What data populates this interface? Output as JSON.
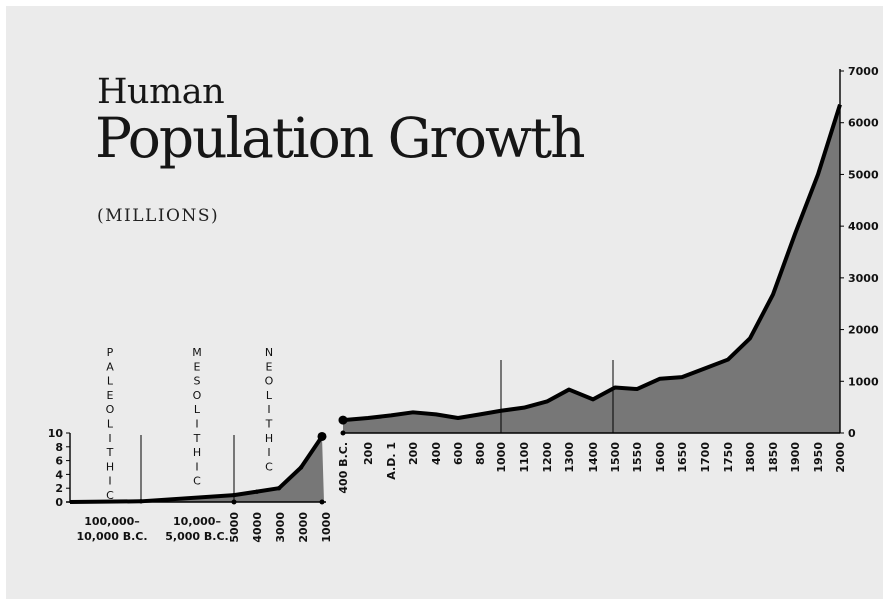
{
  "title": {
    "line1": "Human",
    "line2": "Population Growth",
    "unit": "(MILLIONS)"
  },
  "colors": {
    "background": "#ebebeb",
    "area_fill": "#777777",
    "line": "#000000"
  },
  "chart_data": [
    {
      "type": "area",
      "panel": "prehistoric",
      "title": "",
      "ylim": [
        0,
        10
      ],
      "y_ticks": [
        "0",
        "2",
        "4",
        "6",
        "8",
        "10"
      ],
      "x_tick_labels": [
        "100,000–\n10,000 B.C.",
        "10,000–\n5,000 B.C.",
        "5000",
        "4000",
        "3000",
        "2000",
        "1000"
      ],
      "eras": [
        "PALEOLITHIC",
        "MESOLITHIC",
        "NEOLITHIC"
      ],
      "x": [
        "100,000 B.C.",
        "10,000 B.C.",
        "5000 B.C.",
        "4000 B.C.",
        "3000 B.C.",
        "2000 B.C.",
        "1000 B.C."
      ],
      "values": [
        0,
        0.1,
        1.0,
        1.5,
        2,
        5,
        9.5
      ]
    },
    {
      "type": "area",
      "panel": "historic",
      "title": "",
      "ylim": [
        0,
        7000
      ],
      "y_ticks": [
        "0",
        "1000",
        "2000",
        "3000",
        "4000",
        "5000",
        "6000",
        "7000"
      ],
      "x": [
        "400 B.C.",
        "200",
        "A.D. 1",
        "200",
        "400",
        "600",
        "800",
        "1000",
        "1100",
        "1200",
        "1300",
        "1400",
        "1500",
        "1550",
        "1600",
        "1650",
        "1700",
        "1750",
        "1800",
        "1850",
        "1900",
        "1950",
        "2000"
      ],
      "values": [
        250,
        290,
        340,
        400,
        360,
        290,
        360,
        430,
        490,
        610,
        840,
        650,
        880,
        850,
        1050,
        1080,
        1250,
        1420,
        1830,
        2680,
        3850,
        5000,
        6350
      ]
    }
  ]
}
